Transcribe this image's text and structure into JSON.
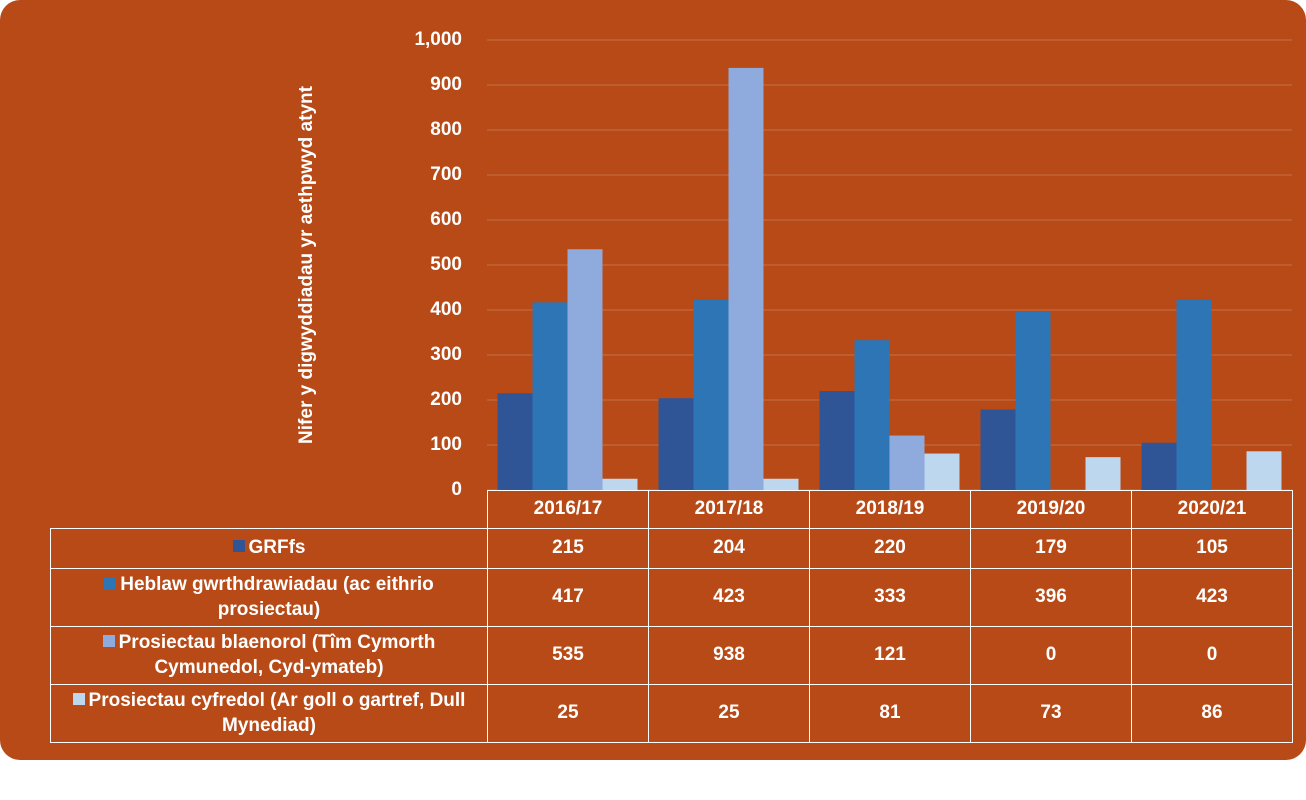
{
  "chart_data": {
    "type": "bar",
    "y_label": "Nifer y digwyddiadau yr aethpwyd atynt",
    "categories": [
      "2016/17",
      "2017/18",
      "2018/19",
      "2019/20",
      "2020/21"
    ],
    "series": [
      {
        "name": "GRFfs",
        "color": "#2f5597",
        "values": [
          215,
          204,
          220,
          179,
          105
        ]
      },
      {
        "name": "Heblaw gwrthdrawiadau (ac eithrio prosiectau)",
        "color": "#2e75b6",
        "values": [
          417,
          423,
          333,
          396,
          423
        ]
      },
      {
        "name": "Prosiectau blaenorol (Tîm Cymorth Cymunedol, Cyd-ymateb)",
        "color": "#8faadc",
        "values": [
          535,
          938,
          121,
          0,
          0
        ]
      },
      {
        "name": "Prosiectau cyfredol (Ar goll o gartref, Dull Mynediad)",
        "color": "#bdd7ee",
        "values": [
          25,
          25,
          81,
          73,
          86
        ]
      }
    ],
    "ylim": [
      0,
      1000
    ],
    "yticks": [
      0,
      100,
      200,
      300,
      400,
      500,
      600,
      700,
      800,
      900,
      {
        "value": 1000,
        "label": "1,000"
      }
    ],
    "grid": true,
    "data_table": true
  }
}
